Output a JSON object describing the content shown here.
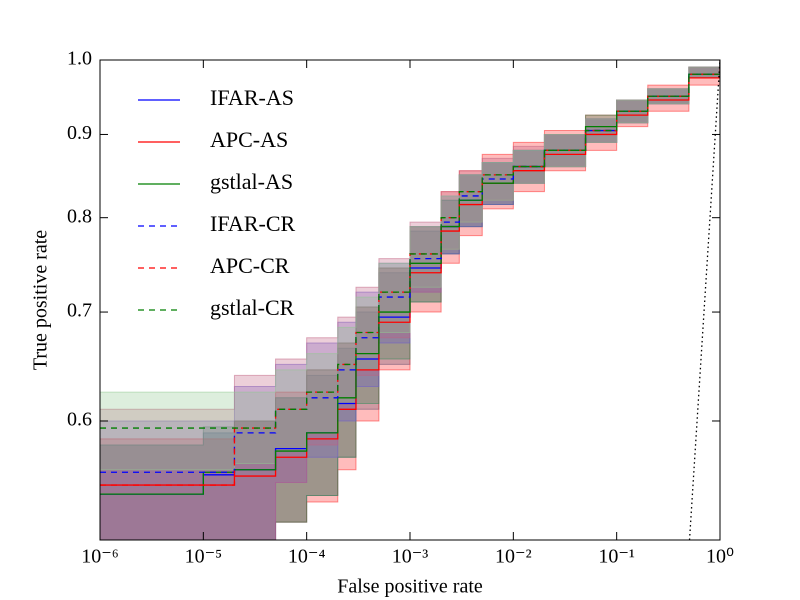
{
  "chart_data": {
    "type": "step",
    "xlabel": "False positive rate",
    "ylabel": "True positive rate",
    "xscale": "log",
    "yscale": "log",
    "xlim": [
      1e-06,
      1
    ],
    "ylim": [
      0.507,
      1.0
    ],
    "xticks": [
      {
        "value": 1e-06,
        "label": "10⁻⁶"
      },
      {
        "value": 1e-05,
        "label": "10⁻⁵"
      },
      {
        "value": 0.0001,
        "label": "10⁻⁴"
      },
      {
        "value": 0.001,
        "label": "10⁻³"
      },
      {
        "value": 0.01,
        "label": "10⁻²"
      },
      {
        "value": 0.1,
        "label": "10⁻¹"
      },
      {
        "value": 1,
        "label": "10⁰"
      }
    ],
    "yticks": [
      0.6,
      0.7,
      0.8,
      0.9,
      {
        "value": 1,
        "label": "1.0"
      }
    ],
    "legend": "upper left",
    "x": [
      1e-06,
      1e-05,
      2e-05,
      5e-05,
      0.0001,
      0.0002,
      0.0003,
      0.0005,
      0.001,
      0.002,
      0.003,
      0.005,
      0.01,
      0.02,
      0.05,
      0.1,
      0.2,
      0.5,
      1
    ],
    "series": [
      {
        "name": "IFAR-AS",
        "color": "#0000ff",
        "dash": false,
        "values": [
          0.541,
          0.556,
          0.56,
          0.577,
          0.59,
          0.615,
          0.655,
          0.695,
          0.745,
          0.79,
          0.82,
          0.84,
          0.86,
          0.88,
          0.905,
          0.93,
          0.95,
          0.98,
          1.0
        ],
        "band_color": "#1f5f8b",
        "lower": [
          0.507,
          0.507,
          0.507,
          0.52,
          0.54,
          0.57,
          0.61,
          0.65,
          0.71,
          0.76,
          0.79,
          0.815,
          0.84,
          0.86,
          0.89,
          0.915,
          0.94,
          0.975,
          1.0
        ],
        "upper": [
          0.58,
          0.59,
          0.6,
          0.62,
          0.64,
          0.665,
          0.7,
          0.74,
          0.785,
          0.82,
          0.85,
          0.865,
          0.88,
          0.9,
          0.92,
          0.945,
          0.96,
          0.99,
          1.0
        ]
      },
      {
        "name": "APC-AS",
        "color": "#ff0000",
        "dash": false,
        "values": [
          0.548,
          0.548,
          0.555,
          0.57,
          0.585,
          0.61,
          0.645,
          0.69,
          0.74,
          0.785,
          0.815,
          0.84,
          0.855,
          0.875,
          0.9,
          0.925,
          0.945,
          0.975,
          1.0
        ],
        "band_color": "#ff2020",
        "lower": [
          0.507,
          0.507,
          0.507,
          0.52,
          0.535,
          0.56,
          0.6,
          0.645,
          0.7,
          0.75,
          0.78,
          0.81,
          0.83,
          0.855,
          0.88,
          0.91,
          0.93,
          0.965,
          1.0
        ],
        "upper": [
          0.585,
          0.585,
          0.6,
          0.625,
          0.645,
          0.67,
          0.705,
          0.745,
          0.79,
          0.83,
          0.855,
          0.875,
          0.89,
          0.905,
          0.925,
          0.945,
          0.965,
          0.99,
          1.0
        ]
      },
      {
        "name": "gstlal-AS",
        "color": "#007f00",
        "dash": false,
        "values": [
          0.541,
          0.558,
          0.56,
          0.575,
          0.59,
          0.62,
          0.66,
          0.7,
          0.75,
          0.79,
          0.82,
          0.84,
          0.86,
          0.88,
          0.91,
          0.93,
          0.95,
          0.98,
          1.0
        ],
        "band_color": "#2e8b57",
        "lower": [
          0.507,
          0.507,
          0.507,
          0.52,
          0.54,
          0.57,
          0.615,
          0.655,
          0.71,
          0.76,
          0.79,
          0.815,
          0.84,
          0.86,
          0.89,
          0.915,
          0.94,
          0.975,
          1.0
        ],
        "upper": [
          0.58,
          0.595,
          0.6,
          0.62,
          0.645,
          0.67,
          0.705,
          0.745,
          0.79,
          0.82,
          0.85,
          0.865,
          0.88,
          0.9,
          0.925,
          0.945,
          0.96,
          0.99,
          1.0
        ]
      },
      {
        "name": "IFAR-CR",
        "color": "#0000ff",
        "dash": true,
        "values": [
          0.558,
          0.558,
          0.59,
          0.61,
          0.62,
          0.645,
          0.675,
          0.715,
          0.755,
          0.795,
          0.825,
          0.845,
          0.86,
          0.88,
          0.905,
          0.93,
          0.95,
          0.98,
          1.0
        ],
        "band_color": "#6a5acd",
        "lower": [
          0.507,
          0.507,
          0.507,
          0.55,
          0.57,
          0.6,
          0.63,
          0.67,
          0.72,
          0.76,
          0.79,
          0.815,
          0.84,
          0.86,
          0.89,
          0.915,
          0.94,
          0.975,
          1.0
        ],
        "upper": [
          0.6,
          0.6,
          0.63,
          0.65,
          0.67,
          0.69,
          0.72,
          0.75,
          0.79,
          0.825,
          0.85,
          0.865,
          0.88,
          0.9,
          0.92,
          0.945,
          0.96,
          0.99,
          1.0
        ]
      },
      {
        "name": "APC-CR",
        "color": "#ff0000",
        "dash": true,
        "values": [
          0.548,
          0.548,
          0.594,
          0.61,
          0.625,
          0.65,
          0.68,
          0.72,
          0.76,
          0.8,
          0.83,
          0.85,
          0.86,
          0.88,
          0.905,
          0.93,
          0.95,
          0.98,
          1.0
        ],
        "band_color": "#c06080",
        "lower": [
          0.507,
          0.507,
          0.507,
          0.55,
          0.58,
          0.61,
          0.64,
          0.675,
          0.72,
          0.765,
          0.795,
          0.82,
          0.84,
          0.86,
          0.89,
          0.915,
          0.94,
          0.975,
          1.0
        ],
        "upper": [
          0.61,
          0.61,
          0.64,
          0.655,
          0.675,
          0.695,
          0.725,
          0.755,
          0.795,
          0.83,
          0.855,
          0.87,
          0.885,
          0.9,
          0.92,
          0.945,
          0.96,
          0.99,
          1.0
        ]
      },
      {
        "name": "gstlal-CR",
        "color": "#007f00",
        "dash": true,
        "values": [
          0.594,
          0.594,
          0.594,
          0.61,
          0.625,
          0.65,
          0.68,
          0.72,
          0.76,
          0.8,
          0.83,
          0.85,
          0.86,
          0.88,
          0.905,
          0.93,
          0.95,
          0.98,
          1.0
        ],
        "band_color": "#90c890",
        "lower": [
          0.56,
          0.56,
          0.565,
          0.575,
          0.59,
          0.615,
          0.645,
          0.68,
          0.725,
          0.765,
          0.795,
          0.82,
          0.84,
          0.86,
          0.89,
          0.915,
          0.94,
          0.975,
          1.0
        ],
        "upper": [
          0.625,
          0.625,
          0.625,
          0.645,
          0.66,
          0.685,
          0.715,
          0.75,
          0.79,
          0.825,
          0.85,
          0.865,
          0.88,
          0.9,
          0.92,
          0.945,
          0.96,
          0.99,
          1.0
        ]
      }
    ]
  }
}
